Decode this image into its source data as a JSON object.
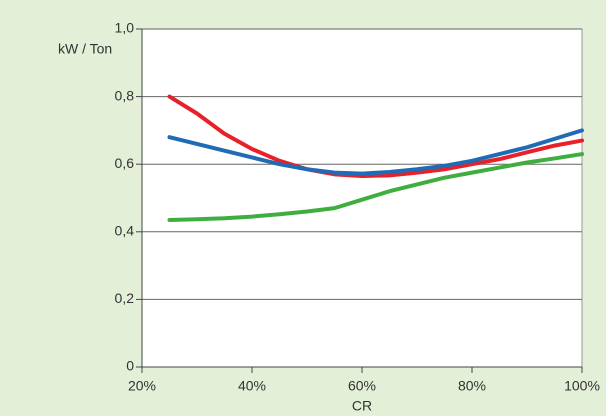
{
  "chart_data": {
    "type": "line",
    "ylabel": "kW / Ton",
    "xlabel": "CR",
    "x": [
      25,
      30,
      35,
      40,
      45,
      50,
      55,
      60,
      65,
      70,
      75,
      80,
      85,
      90,
      95,
      100
    ],
    "series": [
      {
        "color": "#e8202a",
        "values": [
          0.8,
          0.75,
          0.69,
          0.645,
          0.61,
          0.585,
          0.57,
          0.565,
          0.567,
          0.575,
          0.585,
          0.6,
          0.615,
          0.635,
          0.655,
          0.67
        ]
      },
      {
        "color": "#1f6bb5",
        "values": [
          0.68,
          0.66,
          0.64,
          0.62,
          0.6,
          0.585,
          0.575,
          0.572,
          0.577,
          0.585,
          0.595,
          0.61,
          0.63,
          0.65,
          0.675,
          0.7
        ]
      },
      {
        "color": "#3fae3f",
        "values": [
          0.435,
          0.437,
          0.44,
          0.445,
          0.452,
          0.46,
          0.47,
          0.495,
          0.52,
          0.54,
          0.56,
          0.575,
          0.59,
          0.605,
          0.617,
          0.63
        ]
      }
    ],
    "xlim": [
      20,
      100
    ],
    "xticks": [
      {
        "value": 20,
        "label": "20%"
      },
      {
        "value": 40,
        "label": "40%"
      },
      {
        "value": 60,
        "label": "60%"
      },
      {
        "value": 80,
        "label": "80%"
      },
      {
        "value": 100,
        "label": "100%"
      }
    ],
    "ylim": [
      0,
      1
    ],
    "yticks": [
      0,
      {
        "value": 0.2,
        "label": "0,2"
      },
      {
        "value": 0.4,
        "label": "0,4"
      },
      {
        "value": 0.6,
        "label": "0,6"
      },
      {
        "value": 0.8,
        "label": "0,8"
      },
      {
        "value": 1,
        "label": "1,0"
      }
    ],
    "grid": true
  }
}
